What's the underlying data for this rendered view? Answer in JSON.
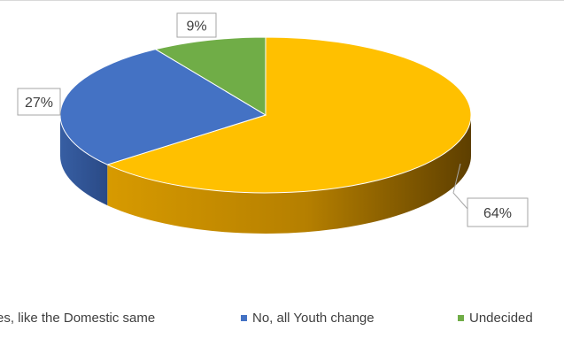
{
  "chart_data": {
    "type": "pie",
    "style": "3d",
    "categories": [
      "Yes, like the Domestic same",
      "No, all Youth change",
      "Undecided"
    ],
    "values": [
      64,
      27,
      9
    ],
    "data_labels": [
      "64%",
      "27%",
      "9%"
    ],
    "colors": [
      "#FFC000",
      "#4472C4",
      "#70AD47"
    ],
    "side_colors": [
      "#a27000",
      "#2c4c8c",
      "#4a7a2f"
    ],
    "legend_position": "bottom",
    "title": ""
  },
  "legend": {
    "items": [
      {
        "label": "es, like the Domestic same",
        "color": "#FFC000"
      },
      {
        "label": "No, all Youth change",
        "color": "#4472C4"
      },
      {
        "label": "Undecided",
        "color": "#70AD47"
      }
    ]
  }
}
